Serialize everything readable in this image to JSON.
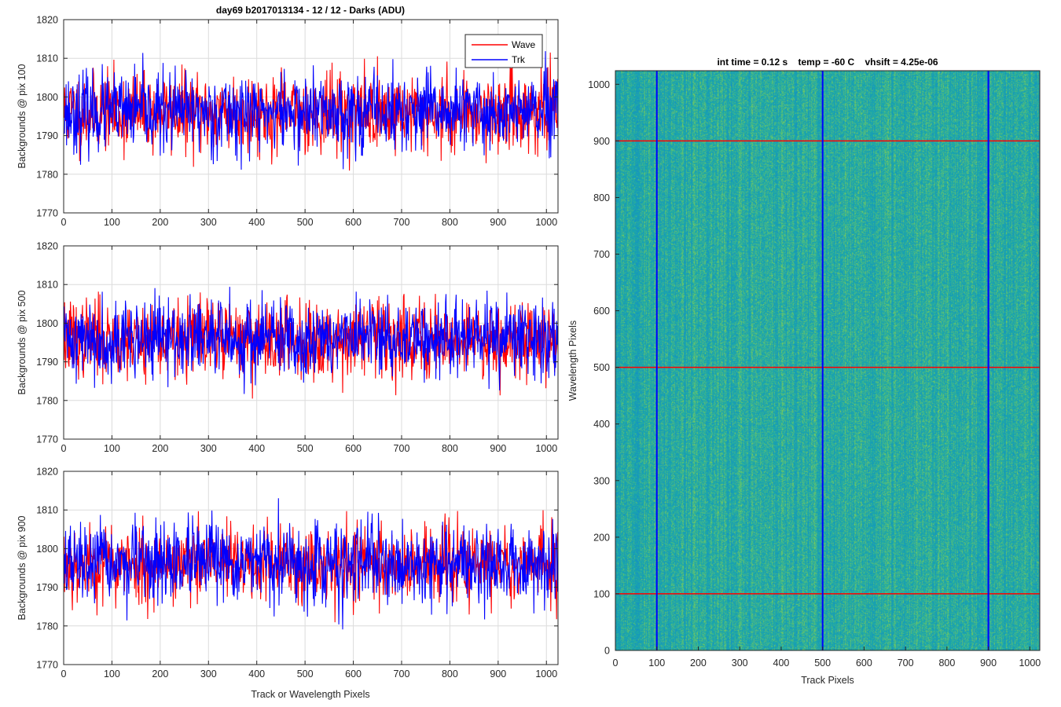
{
  "figure": {
    "left_title": "day69 b2017013134 - 12 / 12 - Darks (ADU)",
    "shared_xlabel": "Track or Wavelength Pixels"
  },
  "colors": {
    "wave": "#ff0000",
    "trk": "#0000ff",
    "image_base": "#1aa6a6",
    "image_noise_light": "#7ec96a",
    "image_noise_dark": "#1f8fbf",
    "grid": "#dcdcdc"
  },
  "chart_data": [
    {
      "type": "line",
      "title": "day69 b2017013134 - 12 / 12 - Darks (ADU)",
      "xlabel": "",
      "ylabel": "Backgrounds @ pix 100",
      "xlim": [
        0,
        1024
      ],
      "ylim": [
        1770,
        1820
      ],
      "xticks": [
        0,
        100,
        200,
        300,
        400,
        500,
        600,
        700,
        800,
        900,
        1000
      ],
      "yticks": [
        1770,
        1780,
        1790,
        1800,
        1810,
        1820
      ],
      "grid": true,
      "legend": "top-right",
      "noise": {
        "mean": 1796,
        "std": 5,
        "min": 1775,
        "max": 1819,
        "seed_wave": 11,
        "seed_trk": 23
      },
      "series": [
        {
          "name": "Wave",
          "color": "#ff0000"
        },
        {
          "name": "Trk",
          "color": "#0000ff"
        }
      ]
    },
    {
      "type": "line",
      "title": "",
      "xlabel": "",
      "ylabel": "Backgrounds @ pix 500",
      "xlim": [
        0,
        1024
      ],
      "ylim": [
        1770,
        1820
      ],
      "xticks": [
        0,
        100,
        200,
        300,
        400,
        500,
        600,
        700,
        800,
        900,
        1000
      ],
      "yticks": [
        1770,
        1780,
        1790,
        1800,
        1810,
        1820
      ],
      "grid": true,
      "noise": {
        "mean": 1796,
        "std": 5,
        "min": 1774,
        "max": 1815,
        "seed_wave": 37,
        "seed_trk": 41
      },
      "series": [
        {
          "name": "Wave",
          "color": "#ff0000"
        },
        {
          "name": "Trk",
          "color": "#0000ff"
        }
      ]
    },
    {
      "type": "line",
      "title": "",
      "xlabel": "Track or Wavelength Pixels",
      "ylabel": "Backgrounds @ pix 900",
      "xlim": [
        0,
        1024
      ],
      "ylim": [
        1770,
        1820
      ],
      "xticks": [
        0,
        100,
        200,
        300,
        400,
        500,
        600,
        700,
        800,
        900,
        1000
      ],
      "yticks": [
        1770,
        1780,
        1790,
        1800,
        1810,
        1820
      ],
      "grid": true,
      "noise": {
        "mean": 1796,
        "std": 5,
        "min": 1775,
        "max": 1815,
        "seed_wave": 53,
        "seed_trk": 67
      },
      "series": [
        {
          "name": "Wave",
          "color": "#ff0000"
        },
        {
          "name": "Trk",
          "color": "#0000ff"
        }
      ]
    },
    {
      "type": "heatmap",
      "title": "int time = 0.12 s    temp = -60 C    vhsift = 4.25e-06",
      "xlabel": "Track Pixels",
      "ylabel": "Wavelength Pixels",
      "xlim": [
        0,
        1024
      ],
      "ylim": [
        0,
        1024
      ],
      "xticks": [
        0,
        100,
        200,
        300,
        400,
        500,
        600,
        700,
        800,
        900,
        1000
      ],
      "yticks": [
        0,
        100,
        200,
        300,
        400,
        500,
        600,
        700,
        800,
        900,
        1000
      ],
      "grid": false,
      "vertical_markers": {
        "color": "#0000ff",
        "x": [
          100,
          500,
          900
        ]
      },
      "horizontal_markers": {
        "color": "#ff0000",
        "y": [
          100,
          500,
          900
        ]
      }
    }
  ]
}
